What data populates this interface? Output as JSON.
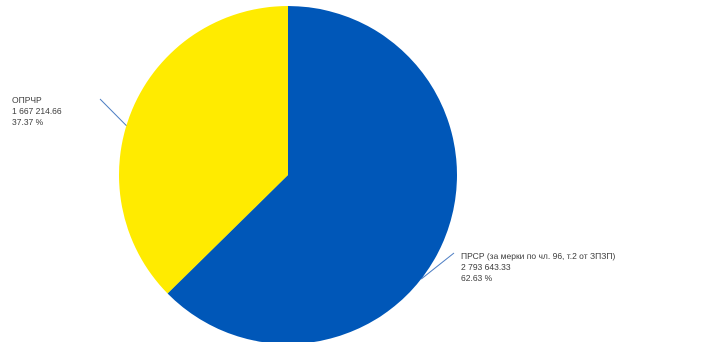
{
  "chart_data": {
    "type": "pie",
    "title": "",
    "slices": [
      {
        "label": "ПРСР (за мерки по чл. 96, т.2 от ЗПЗП)",
        "value_text": "2 793 643.33",
        "value": 2793643.33,
        "percent_text": "62.63 %",
        "percent": 62.63,
        "color": "#0057b8"
      },
      {
        "label": "ОПРЧР",
        "value_text": "1 667 214.66",
        "value": 1667214.66,
        "percent_text": "37.37 %",
        "percent": 37.37,
        "color": "#ffeb00"
      }
    ],
    "start_angle_deg": 0,
    "direction": "clockwise",
    "legend": "none",
    "leader_line_color": "#4f7fc4"
  }
}
